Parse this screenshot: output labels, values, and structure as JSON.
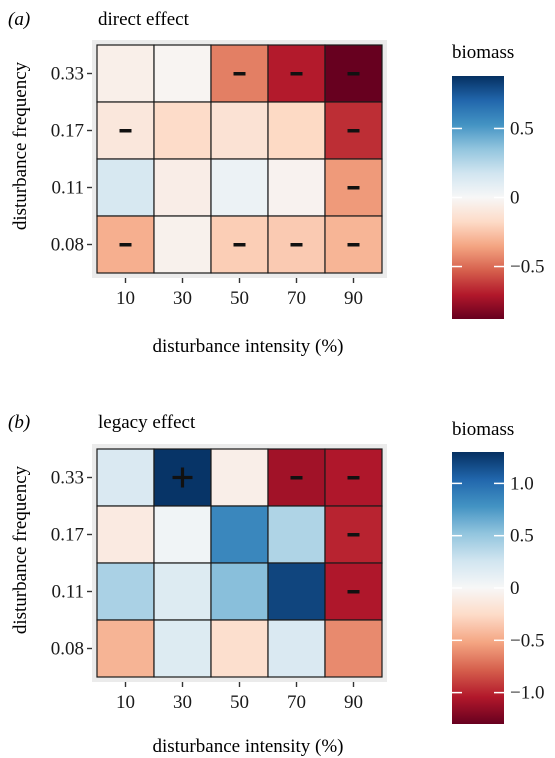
{
  "chart_data": [
    {
      "type": "heatmap",
      "panel_label": "(a)",
      "title": "direct effect",
      "xlabel": "disturbance intensity (%)",
      "ylabel": "disturbance frequency",
      "x": [
        "10",
        "30",
        "50",
        "70",
        "90"
      ],
      "y": [
        "0.33",
        "0.17",
        "0.11",
        "0.08"
      ],
      "values": [
        [
          -0.05,
          -0.02,
          -0.45,
          -0.7,
          -0.88
        ],
        [
          -0.1,
          -0.17,
          -0.13,
          -0.18,
          -0.65
        ],
        [
          0.15,
          -0.06,
          0.05,
          -0.03,
          -0.38
        ],
        [
          -0.32,
          -0.04,
          -0.22,
          -0.23,
          -0.3
        ]
      ],
      "significance": [
        [
          "",
          "",
          "-",
          "-",
          "-"
        ],
        [
          "-",
          "",
          "",
          "",
          "-"
        ],
        [
          "",
          "",
          "",
          "",
          "-"
        ],
        [
          "-",
          "",
          "-",
          "-",
          "-"
        ]
      ],
      "legend": {
        "title": "biomass",
        "range": [
          -0.88,
          0.88
        ],
        "ticks": [
          0.5,
          0,
          -0.5
        ],
        "tick_labels": [
          "0.5",
          "0",
          "−0.5"
        ]
      }
    },
    {
      "type": "heatmap",
      "panel_label": "(b)",
      "title": "legacy effect",
      "xlabel": "disturbance intensity (%)",
      "ylabel": "disturbance frequency",
      "x": [
        "10",
        "30",
        "50",
        "70",
        "90"
      ],
      "y": [
        "0.33",
        "0.17",
        "0.11",
        "0.08"
      ],
      "values": [
        [
          0.2,
          1.28,
          -0.08,
          -1.1,
          -1.05
        ],
        [
          -0.12,
          0.05,
          0.85,
          0.4,
          -1.0
        ],
        [
          0.42,
          0.18,
          0.55,
          1.2,
          -1.05
        ],
        [
          -0.45,
          0.18,
          -0.22,
          0.2,
          -0.62
        ]
      ],
      "significance": [
        [
          "",
          "+",
          "",
          "-",
          "-"
        ],
        [
          "",
          "",
          "",
          "",
          "-"
        ],
        [
          "",
          "",
          "",
          "",
          "-"
        ],
        [
          "",
          "",
          "",
          "",
          ""
        ]
      ],
      "legend": {
        "title": "biomass",
        "range": [
          -1.3,
          1.3
        ],
        "ticks": [
          1.0,
          0.5,
          0,
          -0.5,
          -1.0
        ],
        "tick_labels": [
          "1.0",
          "0.5",
          "0",
          "−0.5",
          "−1.0"
        ]
      }
    }
  ],
  "colors": {
    "panel_background": "#ebebeb",
    "axis_tick": "#333333",
    "cell_border": "#1a1a1a",
    "scale": [
      "#67001f",
      "#b2182b",
      "#d6604d",
      "#f4a582",
      "#fddbc7",
      "#f7f7f7",
      "#d1e5f0",
      "#92c5de",
      "#4393c3",
      "#2166ac",
      "#053061"
    ]
  }
}
